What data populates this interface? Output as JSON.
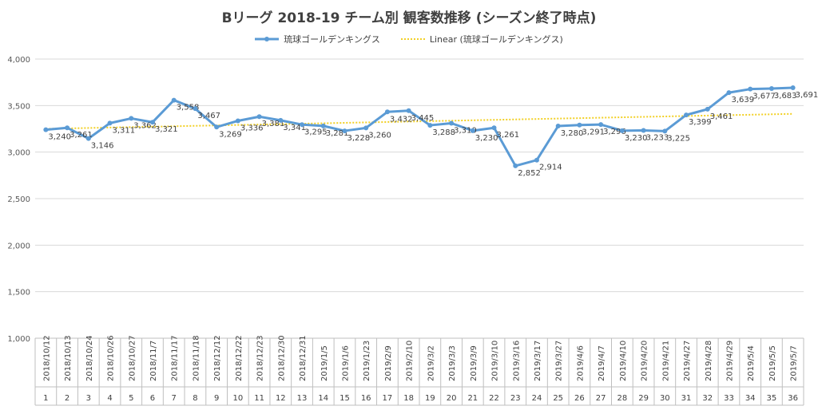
{
  "title": "Bリーグ 2018-19 チーム別 観客数推移 (シーズン終了時点)",
  "legend": {
    "series_label": "琉球ゴールデンキングス",
    "trend_label": "Linear (琉球ゴールデンキングス)"
  },
  "colors": {
    "series": "#5b9bd5",
    "trend": "#f2d026",
    "grid": "#d9d9d9",
    "text": "#404040"
  },
  "chart_data": {
    "type": "line",
    "title": "Bリーグ 2018-19 チーム別 観客数推移 (シーズン終了時点)",
    "xlabel": "",
    "ylabel": "",
    "ylim": [
      1000,
      4000
    ],
    "yticks": [
      "1,000",
      "1,500",
      "2,000",
      "2,500",
      "3,000",
      "3,500",
      "4,000"
    ],
    "grid": true,
    "legend_position": "top",
    "categories": [
      "2018/10/12",
      "2018/10/13",
      "2018/10/24",
      "2018/10/26",
      "2018/10/27",
      "2018/11/7",
      "2018/11/17",
      "2018/11/18",
      "2018/12/12",
      "2018/12/22",
      "2018/12/23",
      "2018/12/30",
      "2018/12/31",
      "2019/1/5",
      "2019/1/6",
      "2019/1/23",
      "2019/2/9",
      "2019/2/10",
      "2019/3/2",
      "2019/3/3",
      "2019/3/9",
      "2019/3/10",
      "2019/3/16",
      "2019/3/17",
      "2019/3/27",
      "2019/4/6",
      "2019/4/7",
      "2019/4/10",
      "2019/4/20",
      "2019/4/21",
      "2019/4/27",
      "2019/4/28",
      "2019/4/29",
      "2019/5/4",
      "2019/5/5",
      "2019/5/7"
    ],
    "game_numbers": [
      "1",
      "2",
      "3",
      "4",
      "5",
      "6",
      "7",
      "8",
      "9",
      "10",
      "11",
      "12",
      "13",
      "14",
      "15",
      "16",
      "17",
      "18",
      "19",
      "20",
      "21",
      "22",
      "23",
      "24",
      "25",
      "26",
      "27",
      "28",
      "29",
      "30",
      "31",
      "32",
      "33",
      "34",
      "35",
      "36"
    ],
    "series": [
      {
        "name": "琉球ゴールデンキングス",
        "values": [
          3240,
          3261,
          3146,
          3311,
          3362,
          3321,
          3558,
          3467,
          3269,
          3336,
          3381,
          3341,
          3295,
          3281,
          3228,
          3260,
          3432,
          3445,
          3288,
          3310,
          3230,
          3261,
          2852,
          2914,
          3280,
          3291,
          3296,
          3230,
          3233,
          3225,
          3399,
          3461,
          3639,
          3677,
          3683,
          3691
        ],
        "labels": [
          "3,240",
          "3,261",
          "3,146",
          "3,311",
          "3,362",
          "3,321",
          "3,558",
          "3,467",
          "3,269",
          "3,336",
          "3,381",
          "3,341",
          "3,295",
          "3,281",
          "3,228",
          "3,260",
          "3,432",
          "3,445",
          "3,288",
          "3,310",
          "3,230",
          "3,261",
          "2,852",
          "2,914",
          "3,280",
          "3,291",
          "3,296",
          "3,230",
          "3,233",
          "3,225",
          "3,399",
          "3,461",
          "3,639",
          "3,677",
          "3,683",
          "3,691"
        ]
      }
    ],
    "trendline": {
      "name": "Linear (琉球ゴールデンキングス)",
      "type": "linear"
    }
  }
}
